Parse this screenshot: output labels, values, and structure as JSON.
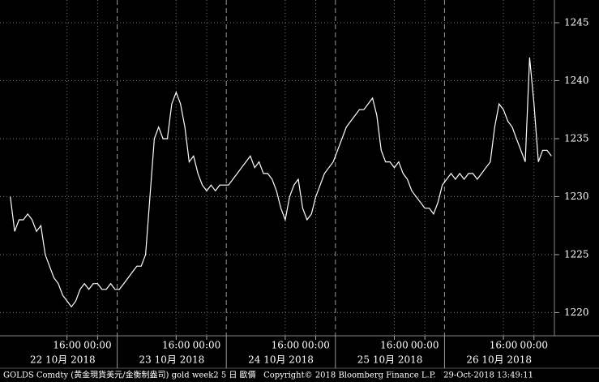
{
  "chart_data": {
    "type": "line",
    "categories": [
      null,
      null,
      null,
      null,
      null,
      null,
      null,
      null,
      null,
      null,
      null,
      null,
      null,
      "16:00",
      null,
      null,
      null,
      null,
      null,
      null,
      "00:00",
      null,
      null,
      null,
      null,
      null,
      null,
      null,
      null,
      null,
      null,
      null,
      null,
      null,
      null,
      null,
      null,
      null,
      "16:00",
      null,
      null,
      null,
      null,
      null,
      null,
      "00:00",
      null,
      null,
      null,
      null,
      null,
      null,
      null,
      null,
      null,
      null,
      null,
      null,
      null,
      null,
      null,
      null,
      null,
      "16:00",
      null,
      null,
      null,
      null,
      null,
      null,
      "00:00",
      null,
      null,
      null,
      null,
      null,
      null,
      null,
      null,
      null,
      null,
      null,
      null,
      null,
      null,
      null,
      null,
      null,
      "16:00",
      null,
      null,
      null,
      null,
      null,
      null,
      "00:00",
      null,
      null,
      null,
      null,
      null,
      null,
      null,
      null,
      null,
      null,
      null,
      null,
      null,
      null,
      null,
      null,
      null,
      "16:00",
      null,
      null,
      null,
      null,
      null,
      null,
      "00:00",
      null,
      null,
      null,
      null
    ],
    "values": [
      1230,
      1227,
      1228,
      1228,
      1228.5,
      1228,
      1227,
      1227.5,
      1225,
      1224,
      1223,
      1222.5,
      1221.5,
      1221,
      1220.5,
      1221,
      1222,
      1222.5,
      1222,
      1222.5,
      1222.5,
      1222,
      1222,
      1222.5,
      1222,
      1222,
      1222.5,
      1223,
      1223.5,
      1224,
      1224,
      1225,
      1230,
      1235,
      1236,
      1235,
      1235,
      1238,
      1239,
      1238,
      1236,
      1233,
      1233.5,
      1232,
      1231,
      1230.5,
      1231,
      1230.5,
      1231,
      1231,
      1231,
      1231.5,
      1232,
      1232.5,
      1233,
      1233.5,
      1232.5,
      1233,
      1232,
      1232,
      1231.5,
      1230.5,
      1229,
      1228,
      1230,
      1231,
      1231.5,
      1229,
      1228,
      1228.5,
      1230,
      1231,
      1232,
      1232.5,
      1233,
      1234,
      1235,
      1236,
      1236.5,
      1237,
      1237.5,
      1237.5,
      1238,
      1238.5,
      1237,
      1234,
      1233,
      1233,
      1232.5,
      1233,
      1232,
      1231.5,
      1230.5,
      1230,
      1229.5,
      1229,
      1229,
      1228.5,
      1229.5,
      1231,
      1231.5,
      1232,
      1231.5,
      1232,
      1231.5,
      1232,
      1232,
      1231.5,
      1232,
      1232.5,
      1233,
      1236,
      1238,
      1237.5,
      1236.5,
      1236,
      1235,
      1234,
      1233,
      1242,
      1238,
      1233,
      1234,
      1234,
      1233.5
    ],
    "color": "#ffffff",
    "date_labels": [
      "22 10月 2018",
      "23 10月 2018",
      "24 10月 2018",
      "25 10月 2018",
      "26 10月 2018"
    ],
    "ylim": [
      1218,
      1246.4
    ],
    "yticks": [
      1220,
      1225,
      1230,
      1235,
      1240,
      1245
    ],
    "grid": true,
    "footer": "GOLDS Comdty (黄金現貨美元/金衡制盎司) gold week2 5 日 歐價   Copyright© 2018 Bloomberg Finance L.P.   29-Oct-2018 13:49:11"
  }
}
